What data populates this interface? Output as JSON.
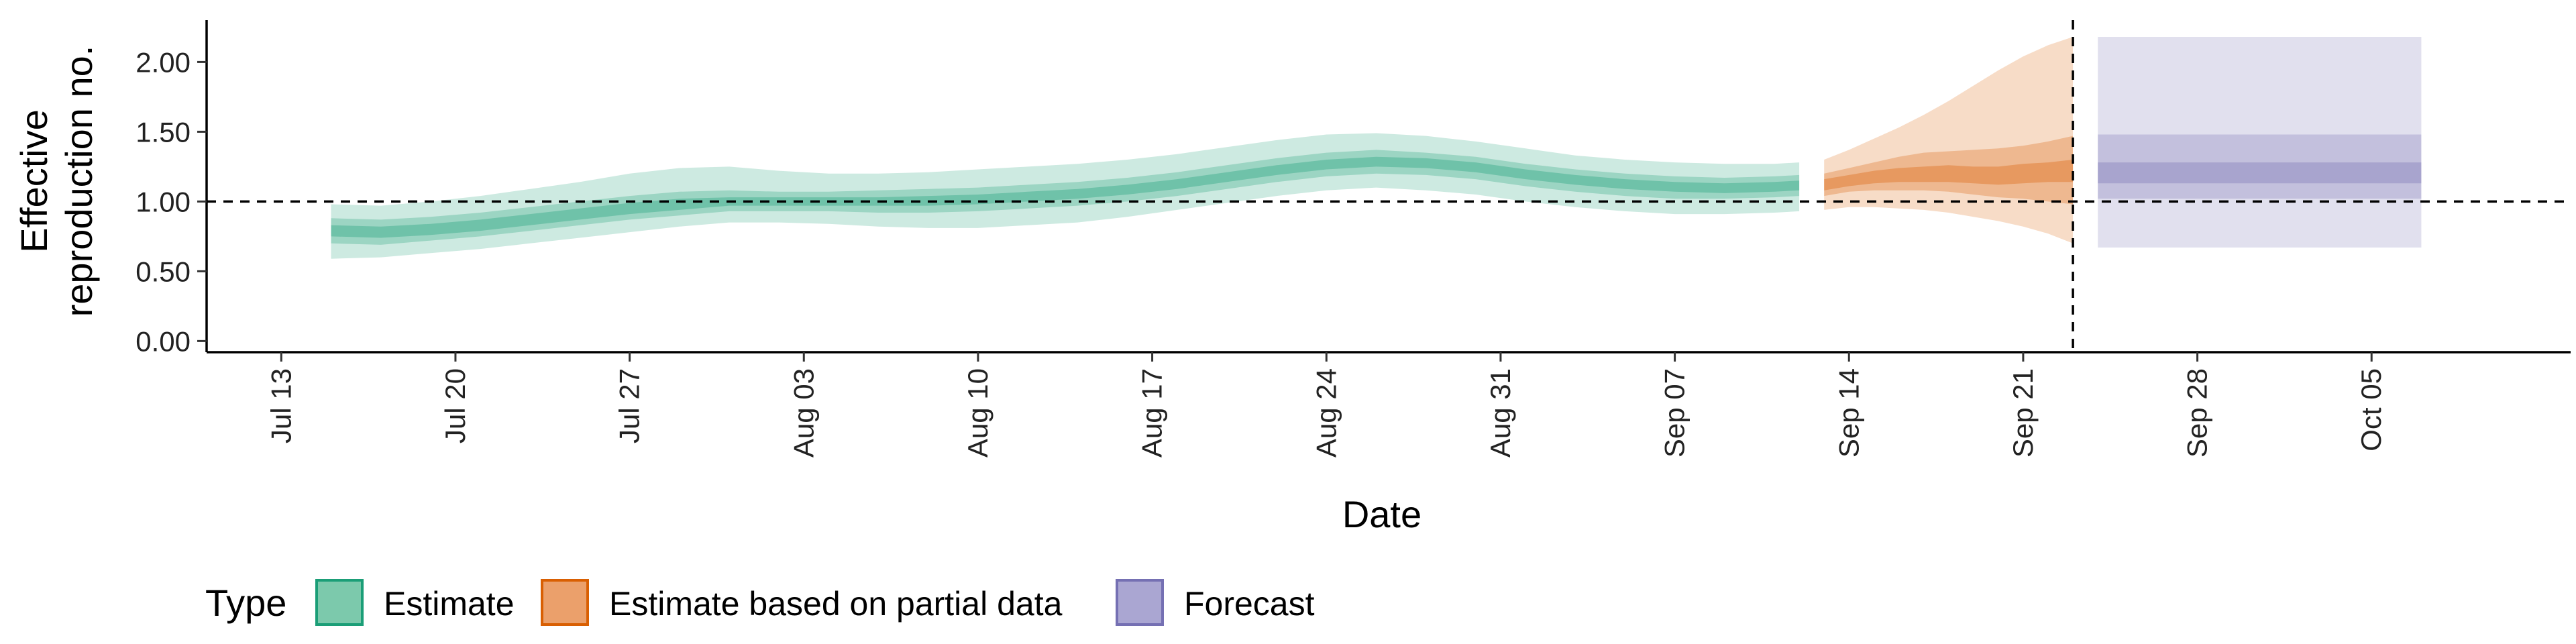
{
  "chart_data": {
    "type": "area",
    "title": "",
    "xlabel": "Date",
    "ylabel_lines": [
      "Effective",
      "reproduction no."
    ],
    "x_range": [
      "2020-07-10",
      "2020-10-13"
    ],
    "x_ticks": [
      {
        "date": "2020-07-13",
        "label": "Jul 13"
      },
      {
        "date": "2020-07-20",
        "label": "Jul 20"
      },
      {
        "date": "2020-07-27",
        "label": "Jul 27"
      },
      {
        "date": "2020-08-03",
        "label": "Aug 03"
      },
      {
        "date": "2020-08-10",
        "label": "Aug 10"
      },
      {
        "date": "2020-08-17",
        "label": "Aug 17"
      },
      {
        "date": "2020-08-24",
        "label": "Aug 24"
      },
      {
        "date": "2020-08-31",
        "label": "Aug 31"
      },
      {
        "date": "2020-09-07",
        "label": "Sep 07"
      },
      {
        "date": "2020-09-14",
        "label": "Sep 14"
      },
      {
        "date": "2020-09-21",
        "label": "Sep 21"
      },
      {
        "date": "2020-09-28",
        "label": "Sep 28"
      },
      {
        "date": "2020-10-05",
        "label": "Oct 05"
      }
    ],
    "ylim": [
      -0.08,
      2.3
    ],
    "y_ticks": [
      0.0,
      0.5,
      1.0,
      1.5,
      2.0
    ],
    "y_tick_labels": [
      "0.00",
      "0.50",
      "1.00",
      "1.50",
      "2.00"
    ],
    "hline": 1.0,
    "vline_date": "2020-09-23",
    "grid": false,
    "legend": {
      "title": "Type",
      "position": "bottom",
      "items": [
        {
          "label": "Estimate",
          "fill": "#7cc9ac",
          "border": "#1b9e77"
        },
        {
          "label": "Estimate based on partial data",
          "fill": "#eba06b",
          "border": "#d95f02"
        },
        {
          "label": "Forecast",
          "fill": "#aaa6d2",
          "border": "#7570b3"
        }
      ]
    },
    "series": [
      {
        "name": "Estimate",
        "color": "#1b9e77",
        "x": [
          "2020-07-15",
          "2020-07-17",
          "2020-07-19",
          "2020-07-21",
          "2020-07-23",
          "2020-07-25",
          "2020-07-27",
          "2020-07-29",
          "2020-07-31",
          "2020-08-02",
          "2020-08-04",
          "2020-08-06",
          "2020-08-08",
          "2020-08-10",
          "2020-08-12",
          "2020-08-14",
          "2020-08-16",
          "2020-08-18",
          "2020-08-20",
          "2020-08-22",
          "2020-08-24",
          "2020-08-26",
          "2020-08-28",
          "2020-08-30",
          "2020-09-01",
          "2020-09-03",
          "2020-09-05",
          "2020-09-07",
          "2020-09-09",
          "2020-09-11",
          "2020-09-12"
        ],
        "median": [
          0.79,
          0.78,
          0.8,
          0.83,
          0.87,
          0.91,
          0.95,
          0.98,
          1.0,
          1.0,
          1.0,
          1.0,
          1.0,
          1.01,
          1.03,
          1.05,
          1.08,
          1.12,
          1.17,
          1.22,
          1.26,
          1.28,
          1.27,
          1.24,
          1.19,
          1.15,
          1.12,
          1.1,
          1.09,
          1.1,
          1.11
        ],
        "lower_90": [
          0.59,
          0.6,
          0.63,
          0.66,
          0.7,
          0.74,
          0.78,
          0.82,
          0.85,
          0.85,
          0.84,
          0.82,
          0.81,
          0.81,
          0.83,
          0.85,
          0.89,
          0.94,
          0.99,
          1.04,
          1.08,
          1.1,
          1.08,
          1.05,
          1.0,
          0.96,
          0.93,
          0.91,
          0.91,
          0.92,
          0.93
        ],
        "upper_90": [
          0.98,
          0.97,
          1.0,
          1.04,
          1.09,
          1.14,
          1.2,
          1.24,
          1.25,
          1.22,
          1.2,
          1.2,
          1.21,
          1.23,
          1.25,
          1.27,
          1.3,
          1.34,
          1.39,
          1.44,
          1.48,
          1.49,
          1.47,
          1.43,
          1.38,
          1.33,
          1.3,
          1.28,
          1.27,
          1.27,
          1.28
        ],
        "lower_50": [
          0.7,
          0.69,
          0.72,
          0.75,
          0.79,
          0.83,
          0.87,
          0.9,
          0.93,
          0.93,
          0.93,
          0.92,
          0.92,
          0.93,
          0.95,
          0.97,
          1.0,
          1.04,
          1.09,
          1.14,
          1.18,
          1.2,
          1.19,
          1.16,
          1.11,
          1.07,
          1.04,
          1.02,
          1.02,
          1.03,
          1.04
        ],
        "upper_50": [
          0.88,
          0.87,
          0.89,
          0.92,
          0.96,
          1.0,
          1.04,
          1.07,
          1.08,
          1.07,
          1.07,
          1.08,
          1.09,
          1.1,
          1.12,
          1.14,
          1.17,
          1.21,
          1.26,
          1.31,
          1.35,
          1.37,
          1.35,
          1.32,
          1.27,
          1.23,
          1.2,
          1.18,
          1.17,
          1.18,
          1.19
        ],
        "lower_20": [
          0.75,
          0.74,
          0.76,
          0.79,
          0.83,
          0.87,
          0.91,
          0.94,
          0.97,
          0.97,
          0.97,
          0.97,
          0.97,
          0.98,
          1.0,
          1.02,
          1.05,
          1.09,
          1.14,
          1.19,
          1.23,
          1.25,
          1.24,
          1.21,
          1.16,
          1.12,
          1.09,
          1.07,
          1.06,
          1.07,
          1.08
        ],
        "upper_20": [
          0.83,
          0.82,
          0.84,
          0.87,
          0.91,
          0.95,
          0.99,
          1.02,
          1.03,
          1.03,
          1.03,
          1.03,
          1.04,
          1.05,
          1.07,
          1.09,
          1.12,
          1.16,
          1.21,
          1.26,
          1.3,
          1.32,
          1.31,
          1.28,
          1.23,
          1.19,
          1.16,
          1.14,
          1.13,
          1.14,
          1.15
        ]
      },
      {
        "name": "Estimate based on partial data",
        "color": "#d95f02",
        "x": [
          "2020-09-13",
          "2020-09-14",
          "2020-09-15",
          "2020-09-16",
          "2020-09-17",
          "2020-09-18",
          "2020-09-19",
          "2020-09-20",
          "2020-09-21",
          "2020-09-22",
          "2020-09-23"
        ],
        "median": [
          1.12,
          1.15,
          1.17,
          1.19,
          1.2,
          1.2,
          1.19,
          1.19,
          1.2,
          1.21,
          1.22
        ],
        "lower_90": [
          0.94,
          0.96,
          0.96,
          0.95,
          0.94,
          0.92,
          0.89,
          0.86,
          0.82,
          0.77,
          0.7
        ],
        "upper_90": [
          1.3,
          1.37,
          1.45,
          1.53,
          1.62,
          1.72,
          1.83,
          1.94,
          2.04,
          2.12,
          2.18
        ],
        "lower_50": [
          1.04,
          1.07,
          1.08,
          1.08,
          1.08,
          1.07,
          1.05,
          1.03,
          1.02,
          1.0,
          0.98
        ],
        "upper_50": [
          1.2,
          1.24,
          1.28,
          1.32,
          1.35,
          1.36,
          1.37,
          1.38,
          1.4,
          1.43,
          1.47
        ],
        "lower_20": [
          1.08,
          1.11,
          1.13,
          1.14,
          1.14,
          1.14,
          1.13,
          1.12,
          1.13,
          1.14,
          1.14
        ],
        "upper_20": [
          1.16,
          1.19,
          1.22,
          1.24,
          1.25,
          1.26,
          1.25,
          1.25,
          1.27,
          1.28,
          1.3
        ]
      },
      {
        "name": "Forecast",
        "color": "#7570b3",
        "x": [
          "2020-09-24",
          "2020-10-07"
        ],
        "median": [
          1.22,
          1.22
        ],
        "lower_90": [
          0.67,
          0.67
        ],
        "upper_90": [
          2.18,
          2.18
        ],
        "lower_50": [
          1.02,
          1.02
        ],
        "upper_50": [
          1.48,
          1.48
        ],
        "lower_20": [
          1.13,
          1.13
        ],
        "upper_20": [
          1.28,
          1.28
        ]
      }
    ]
  }
}
